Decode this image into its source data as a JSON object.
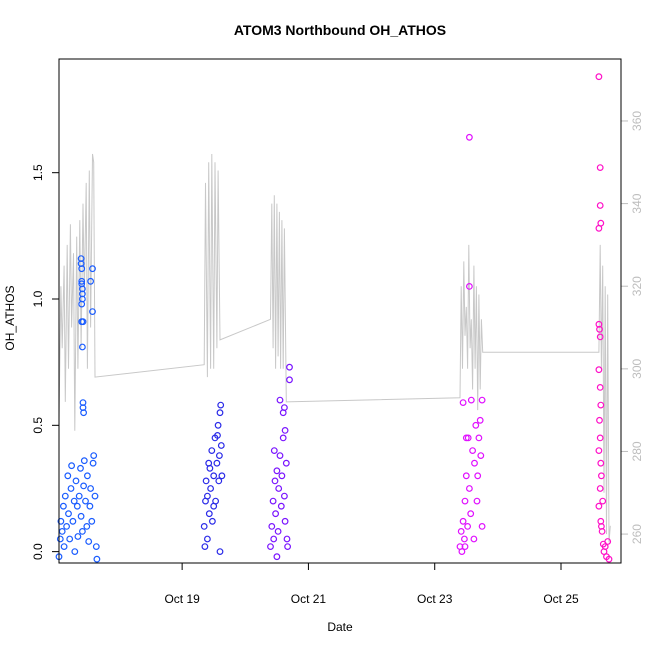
{
  "chart_data": {
    "type": "scatter",
    "title": "ATOM3 Northbound OH_ATHOS",
    "xlabel": "Date",
    "ylabel": "OH_ATHOS",
    "x_ticks": [
      "Oct 19",
      "Oct 21",
      "Oct 23",
      "Oct 25"
    ],
    "x_tick_values": [
      19,
      21,
      23,
      25
    ],
    "xlim": [
      17.05,
      25.95
    ],
    "ylim": [
      -0.045,
      1.95
    ],
    "y_ticks": [
      0.0,
      0.5,
      1.0,
      1.5
    ],
    "y_tick_labels": [
      "0.0",
      "0.5",
      "1.0",
      "1.5"
    ],
    "y2lim": [
      253,
      375
    ],
    "y2_ticks": [
      260,
      280,
      300,
      320,
      340,
      360
    ],
    "y2_tick_labels": [
      "260",
      "280",
      "300",
      "320",
      "340",
      "360"
    ],
    "grid": false,
    "series": [
      {
        "color": "#1a5cff",
        "points": [
          [
            17.05,
            -0.02
          ],
          [
            17.07,
            0.05
          ],
          [
            17.08,
            0.12
          ],
          [
            17.1,
            0.08
          ],
          [
            17.12,
            0.18
          ],
          [
            17.13,
            0.02
          ],
          [
            17.15,
            0.22
          ],
          [
            17.17,
            0.1
          ],
          [
            17.19,
            0.3
          ],
          [
            17.2,
            0.15
          ],
          [
            17.22,
            0.05
          ],
          [
            17.24,
            0.25
          ],
          [
            17.25,
            0.34
          ],
          [
            17.27,
            0.12
          ],
          [
            17.29,
            0.2
          ],
          [
            17.3,
            0.0
          ],
          [
            17.32,
            0.28
          ],
          [
            17.34,
            0.18
          ],
          [
            17.35,
            0.06
          ],
          [
            17.37,
            0.22
          ],
          [
            17.39,
            0.33
          ],
          [
            17.4,
            0.14
          ],
          [
            17.42,
            0.08
          ],
          [
            17.44,
            0.26
          ],
          [
            17.45,
            0.36
          ],
          [
            17.47,
            0.2
          ],
          [
            17.49,
            0.1
          ],
          [
            17.5,
            0.3
          ],
          [
            17.52,
            0.04
          ],
          [
            17.54,
            0.18
          ],
          [
            17.55,
            0.25
          ],
          [
            17.57,
            0.12
          ],
          [
            17.59,
            0.35
          ],
          [
            17.6,
            0.38
          ],
          [
            17.62,
            0.22
          ],
          [
            17.64,
            0.02
          ],
          [
            17.65,
            -0.03
          ],
          [
            17.4,
            1.16
          ],
          [
            17.4,
            1.14
          ],
          [
            17.41,
            1.12
          ],
          [
            17.41,
            1.07
          ],
          [
            17.41,
            1.06
          ],
          [
            17.42,
            1.04
          ],
          [
            17.42,
            1.02
          ],
          [
            17.42,
            1.0
          ],
          [
            17.41,
            0.98
          ],
          [
            17.43,
            0.91
          ],
          [
            17.41,
            0.91
          ],
          [
            17.42,
            0.81
          ],
          [
            17.43,
            0.59
          ],
          [
            17.43,
            0.57
          ],
          [
            17.44,
            0.55
          ],
          [
            17.55,
            1.07
          ],
          [
            17.58,
            0.95
          ],
          [
            17.58,
            1.12
          ]
        ]
      },
      {
        "color": "#2a2ae8",
        "points": [
          [
            19.35,
            0.1
          ],
          [
            19.37,
            0.2
          ],
          [
            19.38,
            0.28
          ],
          [
            19.4,
            0.05
          ],
          [
            19.42,
            0.35
          ],
          [
            19.43,
            0.15
          ],
          [
            19.45,
            0.25
          ],
          [
            19.47,
            0.4
          ],
          [
            19.48,
            0.12
          ],
          [
            19.5,
            0.3
          ],
          [
            19.52,
            0.45
          ],
          [
            19.53,
            0.2
          ],
          [
            19.55,
            0.35
          ],
          [
            19.57,
            0.5
          ],
          [
            19.58,
            0.28
          ],
          [
            19.6,
            0.55
          ],
          [
            19.61,
            0.58
          ],
          [
            19.62,
            0.42
          ],
          [
            19.63,
            0.3
          ],
          [
            19.6,
            0.0
          ],
          [
            19.36,
            0.02
          ],
          [
            19.4,
            0.22
          ],
          [
            19.44,
            0.33
          ],
          [
            19.5,
            0.18
          ],
          [
            19.56,
            0.46
          ],
          [
            19.59,
            0.38
          ]
        ]
      },
      {
        "color": "#7a14ff",
        "points": [
          [
            20.4,
            0.02
          ],
          [
            20.42,
            0.1
          ],
          [
            20.44,
            0.2
          ],
          [
            20.45,
            0.05
          ],
          [
            20.47,
            0.28
          ],
          [
            20.48,
            0.15
          ],
          [
            20.5,
            0.32
          ],
          [
            20.52,
            0.08
          ],
          [
            20.53,
            0.25
          ],
          [
            20.55,
            0.38
          ],
          [
            20.57,
            0.18
          ],
          [
            20.58,
            0.3
          ],
          [
            20.6,
            0.45
          ],
          [
            20.62,
            0.22
          ],
          [
            20.63,
            0.12
          ],
          [
            20.65,
            0.35
          ],
          [
            20.66,
            0.05
          ],
          [
            20.67,
            0.02
          ],
          [
            20.6,
            0.55
          ],
          [
            20.62,
            0.57
          ],
          [
            20.63,
            0.48
          ],
          [
            20.7,
            0.73
          ],
          [
            20.7,
            0.68
          ],
          [
            20.5,
            -0.02
          ],
          [
            20.46,
            0.4
          ],
          [
            20.55,
            0.6
          ]
        ]
      },
      {
        "color": "#e010ff",
        "points": [
          [
            23.4,
            0.02
          ],
          [
            23.42,
            0.08
          ],
          [
            23.43,
            0.0
          ],
          [
            23.45,
            0.12
          ],
          [
            23.47,
            0.05
          ],
          [
            23.48,
            0.2
          ],
          [
            23.5,
            0.3
          ],
          [
            23.52,
            0.1
          ],
          [
            23.53,
            0.45
          ],
          [
            23.55,
            0.25
          ],
          [
            23.57,
            0.15
          ],
          [
            23.58,
            0.6
          ],
          [
            23.6,
            0.4
          ],
          [
            23.62,
            0.05
          ],
          [
            23.63,
            0.35
          ],
          [
            23.65,
            0.5
          ],
          [
            23.67,
            0.2
          ],
          [
            23.68,
            0.3
          ],
          [
            23.7,
            0.45
          ],
          [
            23.72,
            0.52
          ],
          [
            23.73,
            0.38
          ],
          [
            23.75,
            0.1
          ],
          [
            23.75,
            0.6
          ],
          [
            23.45,
            0.59
          ],
          [
            23.55,
            1.64
          ],
          [
            23.55,
            1.05
          ],
          [
            23.5,
            0.45
          ],
          [
            23.48,
            0.02
          ]
        ]
      },
      {
        "color": "#ff10c8",
        "points": [
          [
            25.6,
            1.88
          ],
          [
            25.62,
            1.52
          ],
          [
            25.62,
            1.37
          ],
          [
            25.63,
            1.3
          ],
          [
            25.6,
            1.28
          ],
          [
            25.6,
            0.9
          ],
          [
            25.61,
            0.88
          ],
          [
            25.62,
            0.85
          ],
          [
            25.6,
            0.72
          ],
          [
            25.62,
            0.65
          ],
          [
            25.63,
            0.58
          ],
          [
            25.61,
            0.52
          ],
          [
            25.62,
            0.45
          ],
          [
            25.6,
            0.4
          ],
          [
            25.63,
            0.35
          ],
          [
            25.64,
            0.3
          ],
          [
            25.62,
            0.25
          ],
          [
            25.6,
            0.18
          ],
          [
            25.63,
            0.12
          ],
          [
            25.65,
            0.08
          ],
          [
            25.67,
            0.03
          ],
          [
            25.68,
            0.0
          ],
          [
            25.7,
            0.02
          ],
          [
            25.72,
            -0.02
          ],
          [
            25.74,
            0.04
          ],
          [
            25.76,
            -0.03
          ],
          [
            25.66,
            0.2
          ],
          [
            25.64,
            0.1
          ]
        ]
      }
    ],
    "secondary_line": {
      "color": "#c8c8c8",
      "axis": "right",
      "points": [
        [
          17.05,
          288
        ],
        [
          17.08,
          320
        ],
        [
          17.1,
          305
        ],
        [
          17.13,
          325
        ],
        [
          17.15,
          292
        ],
        [
          17.18,
          330
        ],
        [
          17.2,
          300
        ],
        [
          17.23,
          335
        ],
        [
          17.25,
          310
        ],
        [
          17.28,
          328
        ],
        [
          17.3,
          285
        ],
        [
          17.33,
          332
        ],
        [
          17.35,
          300
        ],
        [
          17.38,
          336
        ],
        [
          17.4,
          305
        ],
        [
          17.43,
          340
        ],
        [
          17.45,
          318
        ],
        [
          17.48,
          345
        ],
        [
          17.5,
          300
        ],
        [
          17.53,
          348
        ],
        [
          17.55,
          310
        ],
        [
          17.58,
          352
        ],
        [
          17.6,
          350
        ],
        [
          17.62,
          298
        ],
        [
          19.35,
          301
        ],
        [
          19.37,
          345
        ],
        [
          19.4,
          298
        ],
        [
          19.42,
          350
        ],
        [
          19.45,
          300
        ],
        [
          19.47,
          352
        ],
        [
          19.5,
          300
        ],
        [
          19.52,
          350
        ],
        [
          19.55,
          305
        ],
        [
          19.57,
          348
        ],
        [
          19.6,
          307
        ],
        [
          20.4,
          312
        ],
        [
          20.42,
          340
        ],
        [
          20.44,
          305
        ],
        [
          20.46,
          342
        ],
        [
          20.48,
          300
        ],
        [
          20.5,
          340
        ],
        [
          20.52,
          303
        ],
        [
          20.54,
          338
        ],
        [
          20.56,
          300
        ],
        [
          20.58,
          336
        ],
        [
          20.6,
          300
        ],
        [
          20.62,
          334
        ],
        [
          20.65,
          292
        ],
        [
          23.4,
          293
        ],
        [
          23.42,
          320
        ],
        [
          23.44,
          300
        ],
        [
          23.46,
          326
        ],
        [
          23.48,
          308
        ],
        [
          23.5,
          315
        ],
        [
          23.52,
          300
        ],
        [
          23.54,
          330
        ],
        [
          23.56,
          305
        ],
        [
          23.58,
          312
        ],
        [
          23.6,
          295
        ],
        [
          23.62,
          325
        ],
        [
          23.64,
          300
        ],
        [
          23.66,
          320
        ],
        [
          23.68,
          290
        ],
        [
          23.7,
          318
        ],
        [
          23.72,
          295
        ],
        [
          23.74,
          312
        ],
        [
          23.76,
          304
        ],
        [
          25.6,
          304
        ],
        [
          25.62,
          330
        ],
        [
          25.64,
          300
        ],
        [
          25.66,
          325
        ],
        [
          25.68,
          270
        ],
        [
          25.7,
          320
        ],
        [
          25.72,
          260
        ],
        [
          25.74,
          318
        ],
        [
          25.76,
          258
        ],
        [
          25.78,
          262
        ]
      ]
    }
  }
}
